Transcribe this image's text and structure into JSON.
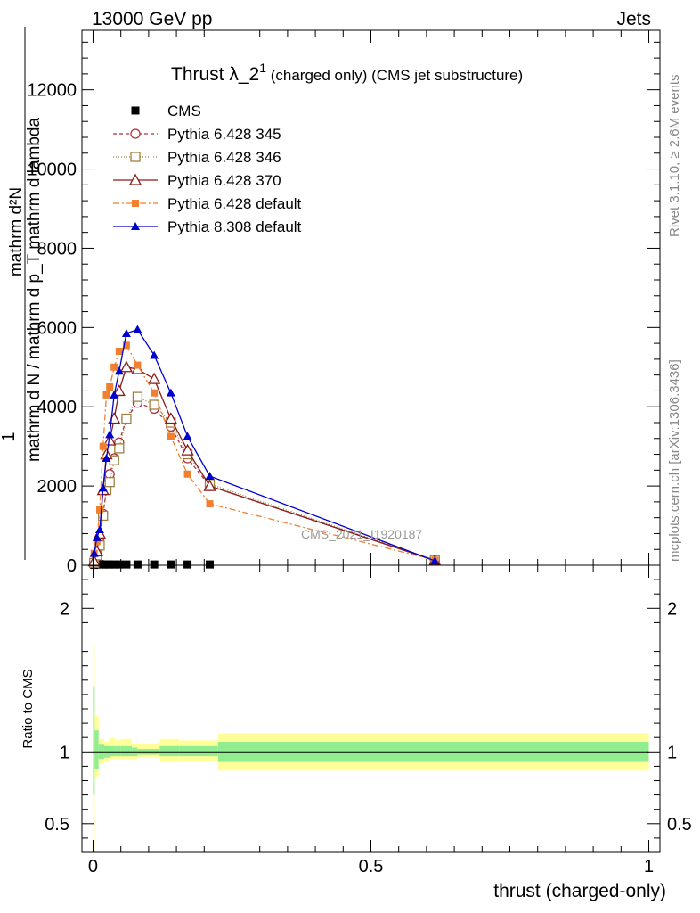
{
  "header": {
    "energy": "13000 GeV pp",
    "process": "Jets"
  },
  "side": {
    "rivet": "Rivet 3.1.10, ≥ 2.6M events",
    "mcplots": "mcplots.cern.ch [arXiv:1306.3436]"
  },
  "main_ylabel": {
    "numerator": "mathrm d²N",
    "one": "1",
    "denominator": "mathrm d N / mathrm d p_T mathrm d lambda"
  },
  "title": {
    "main": "Thrust λ_2",
    "sup": "1",
    "rest": " (charged only) (CMS jet substructure)"
  },
  "watermark": "CMS_2021_I1920187",
  "ratio_ylabel": "Ratio to CMS",
  "xlabel": "thrust (charged-only)",
  "colors": {
    "cms": "#000000",
    "p345": "#b03040",
    "p346": "#a08040",
    "p370": "#8b1a1a",
    "p6def": "#f08030",
    "p8def": "#0000cc",
    "band_inner": "#90ee90",
    "band_outer": "#ffff99"
  },
  "chart_data": {
    "type": "line",
    "main": {
      "xlim": [
        -0.02,
        1.02
      ],
      "ylim": [
        0,
        13500
      ],
      "yticks": [
        0,
        2000,
        4000,
        6000,
        8000,
        10000,
        12000
      ],
      "xticks": [
        0,
        0.5,
        1
      ]
    },
    "ratio": {
      "ylim": [
        0.3,
        2.3
      ],
      "yticks": [
        0.5,
        1,
        2
      ],
      "ytick_labels": [
        "0.5",
        "1",
        "2"
      ],
      "xticks": [
        0,
        0.5,
        1
      ],
      "xtick_labels": [
        "0",
        "0.5",
        "1"
      ]
    },
    "series": [
      {
        "name": "CMS",
        "key": "cms",
        "style": "marker",
        "x": [
          0.002,
          0.007,
          0.012,
          0.018,
          0.024,
          0.03,
          0.038,
          0.047,
          0.06,
          0.08,
          0.11,
          0.14,
          0.17,
          0.21
        ],
        "y": [
          10,
          20,
          30,
          20,
          20,
          20,
          20,
          20,
          20,
          20,
          20,
          20,
          20,
          20
        ]
      },
      {
        "name": "Pythia 6.428 345",
        "key": "p345",
        "style": "circle",
        "x": [
          0.002,
          0.007,
          0.012,
          0.018,
          0.024,
          0.03,
          0.038,
          0.047,
          0.06,
          0.08,
          0.11,
          0.14,
          0.17,
          0.21,
          0.615
        ],
        "y": [
          50,
          300,
          700,
          1300,
          1900,
          2300,
          2700,
          3100,
          3700,
          4100,
          3950,
          3500,
          2700,
          2000,
          130
        ]
      },
      {
        "name": "Pythia 6.428 346",
        "key": "p346",
        "style": "square",
        "x": [
          0.002,
          0.007,
          0.012,
          0.018,
          0.024,
          0.03,
          0.038,
          0.047,
          0.06,
          0.08,
          0.11,
          0.14,
          0.17,
          0.21,
          0.615
        ],
        "y": [
          60,
          250,
          500,
          1250,
          1900,
          2100,
          2650,
          2950,
          3700,
          4250,
          4050,
          3600,
          2800,
          2050,
          130
        ]
      },
      {
        "name": "Pythia 6.428 370",
        "key": "p370",
        "style": "triangle",
        "x": [
          0.002,
          0.007,
          0.012,
          0.018,
          0.024,
          0.03,
          0.038,
          0.047,
          0.06,
          0.08,
          0.11,
          0.14,
          0.17,
          0.21,
          0.615
        ],
        "y": [
          100,
          350,
          800,
          1900,
          2800,
          3150,
          3700,
          4400,
          5000,
          4950,
          4700,
          3700,
          2900,
          2000,
          120
        ]
      },
      {
        "name": "Pythia 6.428 default",
        "key": "p6def",
        "style": "fsquare",
        "x": [
          0.002,
          0.007,
          0.012,
          0.018,
          0.024,
          0.03,
          0.038,
          0.047,
          0.06,
          0.08,
          0.11,
          0.14,
          0.17,
          0.21,
          0.615
        ],
        "y": [
          300,
          600,
          1400,
          3000,
          4300,
          4500,
          5000,
          5400,
          5550,
          5050,
          4350,
          3250,
          2300,
          1550,
          130
        ]
      },
      {
        "name": "Pythia 8.308 default",
        "key": "p8def",
        "style": "ftriangle",
        "x": [
          0.002,
          0.007,
          0.012,
          0.018,
          0.024,
          0.03,
          0.038,
          0.047,
          0.06,
          0.08,
          0.11,
          0.14,
          0.17,
          0.21,
          0.615
        ],
        "y": [
          300,
          700,
          900,
          1950,
          2700,
          3300,
          4300,
          4900,
          5850,
          5950,
          5300,
          4350,
          3250,
          2250,
          110
        ]
      }
    ],
    "ratio_bands": [
      {
        "x0": 0.0,
        "x1": 0.003,
        "in_lo": 0.7,
        "in_hi": 1.45,
        "out_lo": 0.2,
        "out_hi": 1.75
      },
      {
        "x0": 0.003,
        "x1": 0.01,
        "in_lo": 0.88,
        "in_hi": 1.15,
        "out_lo": 0.82,
        "out_hi": 1.25
      },
      {
        "x0": 0.01,
        "x1": 0.02,
        "in_lo": 0.95,
        "in_hi": 1.05,
        "out_lo": 0.92,
        "out_hi": 1.09
      },
      {
        "x0": 0.02,
        "x1": 0.03,
        "in_lo": 0.96,
        "in_hi": 1.04,
        "out_lo": 0.94,
        "out_hi": 1.07
      },
      {
        "x0": 0.03,
        "x1": 0.04,
        "in_lo": 0.97,
        "in_hi": 1.04,
        "out_lo": 0.95,
        "out_hi": 1.1
      },
      {
        "x0": 0.04,
        "x1": 0.05,
        "in_lo": 0.97,
        "in_hi": 1.04,
        "out_lo": 0.95,
        "out_hi": 1.08
      },
      {
        "x0": 0.05,
        "x1": 0.07,
        "in_lo": 0.97,
        "in_hi": 1.04,
        "out_lo": 0.95,
        "out_hi": 1.09
      },
      {
        "x0": 0.07,
        "x1": 0.08,
        "in_lo": 0.97,
        "in_hi": 1.03,
        "out_lo": 0.95,
        "out_hi": 1.06
      },
      {
        "x0": 0.08,
        "x1": 0.12,
        "in_lo": 0.98,
        "in_hi": 1.02,
        "out_lo": 0.96,
        "out_hi": 1.06
      },
      {
        "x0": 0.12,
        "x1": 0.155,
        "in_lo": 0.97,
        "in_hi": 1.04,
        "out_lo": 0.93,
        "out_hi": 1.09
      },
      {
        "x0": 0.155,
        "x1": 0.225,
        "in_lo": 0.97,
        "in_hi": 1.04,
        "out_lo": 0.94,
        "out_hi": 1.08
      },
      {
        "x0": 0.225,
        "x1": 1.0,
        "in_lo": 0.93,
        "in_hi": 1.07,
        "out_lo": 0.87,
        "out_hi": 1.13
      }
    ]
  }
}
